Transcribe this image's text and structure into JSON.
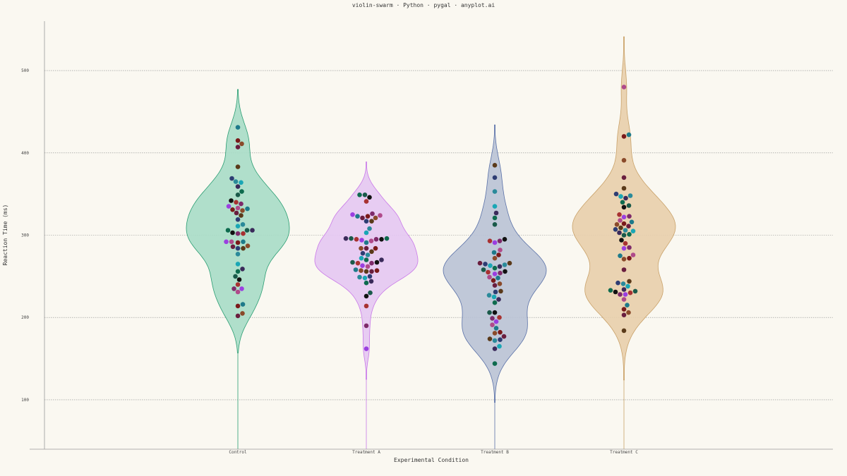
{
  "chart_data": {
    "type": "violin-swarm",
    "title": "violin-swarm · Python · pygal · anyplot.ai",
    "xlabel": "Experimental Condition",
    "ylabel": "Reaction Time (ms)",
    "ylim": [
      40,
      560
    ],
    "yticks": [
      100,
      200,
      300,
      400,
      500
    ],
    "grid": "horizontal-dotted",
    "categories": [
      "Control",
      "Treatment A",
      "Treatment B",
      "Treatment C"
    ],
    "series": [
      {
        "color": "#2A9D72",
        "fill": "#A7DCC6",
        "violin_range": [
          157,
          477
        ],
        "values": [
          431,
          411,
          415,
          407,
          383,
          369,
          365,
          364,
          359,
          353,
          349,
          342,
          340,
          338,
          335,
          333,
          332,
          331,
          330,
          327,
          324,
          319,
          313,
          311,
          306,
          306,
          306,
          303,
          302,
          302,
          292,
          292,
          292,
          291,
          287,
          286,
          284,
          284,
          277,
          265,
          259,
          256,
          250,
          246,
          240,
          235,
          235,
          231,
          216,
          214,
          205,
          202
        ]
      },
      {
        "color": "#C979E8",
        "fill": "#E4C7F2",
        "violin_range": [
          125,
          389
        ],
        "values": [
          349,
          349,
          346,
          341,
          326,
          325,
          324,
          323,
          323,
          321,
          321,
          317,
          317,
          308,
          303,
          296,
          296,
          296,
          295,
          295,
          295,
          294,
          293,
          291,
          284,
          284,
          284,
          280,
          278,
          276,
          272,
          270,
          270,
          267,
          267,
          266,
          266,
          263,
          262,
          258,
          257,
          257,
          256,
          256,
          250,
          249,
          248,
          244,
          242,
          230,
          226,
          214,
          190,
          162
        ]
      },
      {
        "color": "#5A71A8",
        "fill": "#B9C2D5",
        "violin_range": [
          97,
          434
        ],
        "values": [
          385,
          370,
          353,
          335,
          327,
          321,
          313,
          295,
          293,
          293,
          291,
          282,
          279,
          276,
          272,
          266,
          266,
          265,
          264,
          263,
          262,
          260,
          258,
          256,
          255,
          254,
          253,
          249,
          248,
          245,
          241,
          239,
          232,
          231,
          227,
          225,
          222,
          218,
          206,
          206,
          200,
          199,
          195,
          191,
          187,
          182,
          181,
          177,
          174,
          173,
          172,
          165,
          162,
          144
        ]
      },
      {
        "color": "#C9A26A",
        "fill": "#E8CEAB",
        "violin_range": [
          124,
          541
        ],
        "values": [
          480,
          422,
          420,
          391,
          370,
          357,
          350,
          348,
          347,
          345,
          340,
          336,
          334,
          325,
          323,
          322,
          318,
          316,
          314,
          313,
          311,
          309,
          307,
          306,
          305,
          303,
          301,
          300,
          294,
          290,
          285,
          284,
          276,
          275,
          272,
          271,
          258,
          244,
          242,
          241,
          238,
          234,
          233,
          232,
          231,
          230,
          228,
          228,
          222,
          215,
          210,
          206,
          203,
          184
        ]
      }
    ],
    "point_colors": [
      "#6A1E3E",
      "#A83232",
      "#2E3D73",
      "#9B3FE0",
      "#1AA7B5",
      "#1E7A8A",
      "#0E6B4E",
      "#8A4A2A",
      "#111111",
      "#5A3A1A",
      "#7E2A6A",
      "#2A8A9A",
      "#B04A8A",
      "#3A2A5A",
      "#7A1A1A",
      "#1A5A4A"
    ]
  }
}
